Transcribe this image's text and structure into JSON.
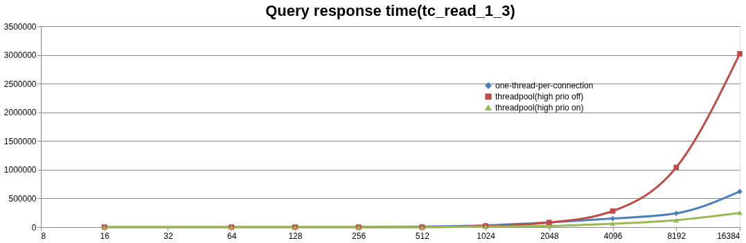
{
  "chart_data": {
    "type": "line",
    "title": "Query response time(tc_read_1_3)",
    "x": [
      16,
      64,
      128,
      256,
      512,
      1024,
      2048,
      4096,
      8192,
      16384
    ],
    "series": [
      {
        "name": "one-thread-per-connection",
        "color": "#4a7ebb",
        "marker": "diamond",
        "values": [
          null,
          null,
          null,
          0,
          10000,
          30000,
          80000,
          150000,
          240000,
          620000
        ]
      },
      {
        "name": "threadpool(high prio off)",
        "color": "#be4b48",
        "marker": "square",
        "values": [
          0,
          0,
          0,
          0,
          0,
          20000,
          80000,
          280000,
          1040000,
          3020000
        ]
      },
      {
        "name": "threadpool(high prio on)",
        "color": "#98b954",
        "marker": "triangle",
        "values": [
          0,
          0,
          0,
          0,
          0,
          10000,
          20000,
          60000,
          120000,
          250000
        ]
      }
    ],
    "log": "x",
    "xlim": [
      8,
      16384
    ],
    "xticks": [
      8,
      16,
      32,
      64,
      128,
      256,
      512,
      1024,
      2048,
      4096,
      8192,
      16384
    ],
    "ylim": [
      0,
      3500000
    ],
    "yticks": [
      0,
      500000,
      1000000,
      1500000,
      2000000,
      2500000,
      3000000,
      3500000
    ],
    "grid": "y",
    "legend": "right"
  }
}
